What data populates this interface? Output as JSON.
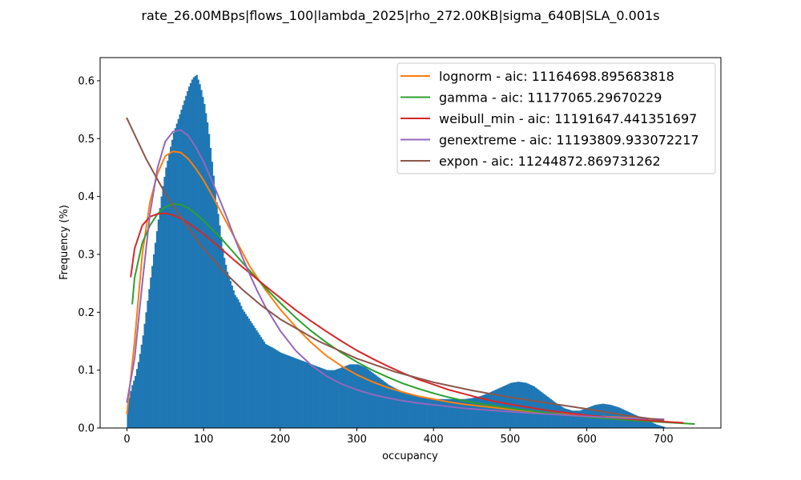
{
  "chart_data": {
    "type": "histogram+line",
    "title": "rate_26.00MBps|flows_100|lambda_2025|rho_272.00KB|sigma_640B|SLA_0.001s",
    "xlabel": "occupancy",
    "ylabel": "Frequency (%)",
    "xlim": [
      -35,
      775
    ],
    "ylim": [
      0,
      0.64
    ],
    "xticks": [
      0,
      100,
      200,
      300,
      400,
      500,
      600,
      700
    ],
    "yticks": [
      0.0,
      0.1,
      0.2,
      0.3,
      0.4,
      0.5,
      0.6
    ],
    "xtick_labels": [
      "0",
      "100",
      "200",
      "300",
      "400",
      "500",
      "600",
      "700"
    ],
    "ytick_labels": [
      "0.0",
      "0.1",
      "0.2",
      "0.3",
      "0.4",
      "0.5",
      "0.6"
    ],
    "legend_position": "top-right",
    "histogram": {
      "color": "#1f77b4",
      "bin_width": 2,
      "x": [
        0,
        5,
        10,
        15,
        20,
        25,
        30,
        35,
        40,
        45,
        50,
        55,
        60,
        65,
        70,
        75,
        80,
        85,
        90,
        95,
        100,
        105,
        110,
        115,
        120,
        125,
        130,
        135,
        140,
        145,
        150,
        155,
        160,
        165,
        170,
        175,
        180,
        190,
        200,
        210,
        220,
        230,
        240,
        250,
        260,
        270,
        280,
        290,
        300,
        310,
        320,
        330,
        340,
        350,
        360,
        370,
        380,
        390,
        400,
        410,
        420,
        430,
        440,
        450,
        460,
        470,
        480,
        490,
        500,
        510,
        520,
        530,
        540,
        550,
        560,
        570,
        580,
        590,
        600,
        610,
        620,
        630,
        640,
        650,
        660,
        670,
        680,
        690,
        700
      ],
      "y": [
        0.04,
        0.07,
        0.09,
        0.12,
        0.16,
        0.21,
        0.26,
        0.31,
        0.36,
        0.41,
        0.45,
        0.48,
        0.51,
        0.53,
        0.55,
        0.57,
        0.59,
        0.605,
        0.61,
        0.59,
        0.56,
        0.52,
        0.46,
        0.4,
        0.35,
        0.3,
        0.27,
        0.25,
        0.23,
        0.22,
        0.205,
        0.195,
        0.185,
        0.175,
        0.165,
        0.155,
        0.145,
        0.138,
        0.13,
        0.125,
        0.12,
        0.115,
        0.11,
        0.105,
        0.1,
        0.1,
        0.105,
        0.11,
        0.11,
        0.105,
        0.095,
        0.085,
        0.075,
        0.068,
        0.062,
        0.058,
        0.055,
        0.052,
        0.05,
        0.05,
        0.05,
        0.05,
        0.05,
        0.052,
        0.055,
        0.06,
        0.066,
        0.072,
        0.078,
        0.08,
        0.078,
        0.072,
        0.062,
        0.052,
        0.042,
        0.034,
        0.03,
        0.03,
        0.035,
        0.04,
        0.042,
        0.04,
        0.036,
        0.03,
        0.024,
        0.018,
        0.012,
        0.006,
        0.002
      ]
    },
    "series": [
      {
        "name": "lognorm - aic: 11164698.895683818",
        "color": "#ff7f0e",
        "x": [
          0,
          10,
          20,
          30,
          40,
          50,
          60,
          70,
          80,
          90,
          100,
          110,
          120,
          130,
          140,
          150,
          160,
          170,
          180,
          200,
          220,
          240,
          260,
          280,
          300,
          320,
          340,
          360,
          380,
          400,
          420,
          440,
          460,
          480,
          500,
          550,
          600,
          650,
          700
        ],
        "y": [
          0.025,
          0.15,
          0.3,
          0.39,
          0.44,
          0.47,
          0.478,
          0.476,
          0.465,
          0.448,
          0.428,
          0.405,
          0.38,
          0.355,
          0.33,
          0.305,
          0.28,
          0.26,
          0.24,
          0.205,
          0.175,
          0.148,
          0.125,
          0.107,
          0.092,
          0.08,
          0.07,
          0.062,
          0.055,
          0.05,
          0.045,
          0.041,
          0.038,
          0.035,
          0.032,
          0.026,
          0.021,
          0.018,
          0.015
        ]
      },
      {
        "name": "gamma - aic: 11177065.29670229",
        "color": "#2ca02c",
        "x": [
          7,
          10,
          20,
          30,
          40,
          50,
          60,
          70,
          80,
          90,
          100,
          120,
          140,
          160,
          180,
          200,
          220,
          240,
          260,
          280,
          300,
          320,
          340,
          360,
          380,
          400,
          420,
          440,
          460,
          480,
          500,
          550,
          600,
          650,
          700,
          740
        ],
        "y": [
          0.215,
          0.26,
          0.32,
          0.35,
          0.37,
          0.382,
          0.387,
          0.386,
          0.38,
          0.37,
          0.358,
          0.332,
          0.302,
          0.272,
          0.243,
          0.216,
          0.191,
          0.168,
          0.148,
          0.13,
          0.114,
          0.1,
          0.088,
          0.077,
          0.068,
          0.06,
          0.053,
          0.047,
          0.042,
          0.038,
          0.034,
          0.026,
          0.019,
          0.014,
          0.01,
          0.007
        ]
      },
      {
        "name": "weibull_min - aic: 11191647.441351697",
        "color": "#d62728",
        "x": [
          5,
          10,
          20,
          30,
          40,
          50,
          60,
          70,
          80,
          90,
          100,
          120,
          140,
          160,
          180,
          200,
          220,
          240,
          260,
          280,
          300,
          320,
          340,
          360,
          380,
          400,
          420,
          440,
          460,
          480,
          500,
          550,
          600,
          650,
          700,
          725
        ],
        "y": [
          0.262,
          0.31,
          0.35,
          0.365,
          0.37,
          0.371,
          0.368,
          0.362,
          0.354,
          0.345,
          0.335,
          0.313,
          0.29,
          0.268,
          0.246,
          0.225,
          0.204,
          0.185,
          0.167,
          0.15,
          0.134,
          0.12,
          0.107,
          0.095,
          0.084,
          0.075,
          0.066,
          0.059,
          0.052,
          0.046,
          0.041,
          0.03,
          0.022,
          0.016,
          0.011,
          0.009
        ]
      },
      {
        "name": "genextreme - aic: 11193809.933072217",
        "color": "#9467bd",
        "x": [
          0,
          10,
          20,
          30,
          40,
          50,
          60,
          70,
          80,
          90,
          100,
          110,
          120,
          130,
          140,
          150,
          160,
          170,
          180,
          200,
          220,
          240,
          260,
          280,
          300,
          320,
          340,
          360,
          380,
          400,
          420,
          440,
          460,
          480,
          500,
          550,
          600,
          650,
          700
        ],
        "y": [
          0.045,
          0.12,
          0.25,
          0.37,
          0.45,
          0.495,
          0.512,
          0.515,
          0.505,
          0.485,
          0.46,
          0.43,
          0.398,
          0.365,
          0.33,
          0.297,
          0.266,
          0.237,
          0.211,
          0.168,
          0.134,
          0.109,
          0.09,
          0.076,
          0.066,
          0.058,
          0.052,
          0.047,
          0.043,
          0.04,
          0.037,
          0.034,
          0.032,
          0.03,
          0.028,
          0.024,
          0.02,
          0.017,
          0.015
        ]
      },
      {
        "name": "expon - aic: 11244872.869731262",
        "color": "#8c564b",
        "x": [
          0,
          25,
          50,
          75,
          100,
          125,
          150,
          175,
          200,
          250,
          300,
          350,
          400,
          450,
          500,
          550,
          600,
          650,
          700
        ],
        "y": [
          0.535,
          0.465,
          0.405,
          0.355,
          0.31,
          0.272,
          0.24,
          0.212,
          0.188,
          0.15,
          0.12,
          0.097,
          0.079,
          0.065,
          0.053,
          0.043,
          0.033,
          0.022,
          0.013
        ]
      }
    ]
  }
}
